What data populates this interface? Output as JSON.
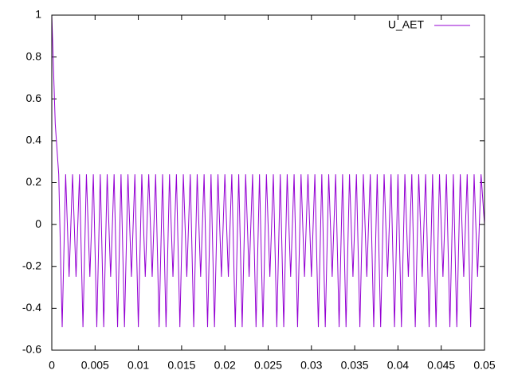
{
  "chart_data": {
    "type": "line",
    "x": [
      0,
      0.0004,
      0.0008,
      0.0012,
      0.0016,
      0.002,
      0.0024,
      0.0028,
      0.0032,
      0.0036,
      0.004,
      0.0044,
      0.0048,
      0.0052,
      0.0056,
      0.006,
      0.0064,
      0.0068,
      0.0072,
      0.0076,
      0.008,
      0.0084,
      0.0088,
      0.0092,
      0.0096,
      0.01,
      0.0104,
      0.0108,
      0.0112,
      0.0116,
      0.012,
      0.0124,
      0.0128,
      0.0132,
      0.0136,
      0.014,
      0.0144,
      0.0148,
      0.0152,
      0.0156,
      0.016,
      0.0164,
      0.0168,
      0.0172,
      0.0176,
      0.018,
      0.0184,
      0.0188,
      0.0192,
      0.0196,
      0.02,
      0.0204,
      0.0208,
      0.0212,
      0.0216,
      0.022,
      0.0224,
      0.0228,
      0.0232,
      0.0236,
      0.024,
      0.0244,
      0.0248,
      0.0252,
      0.0256,
      0.026,
      0.0264,
      0.0268,
      0.0272,
      0.0276,
      0.028,
      0.0284,
      0.0288,
      0.0292,
      0.0296,
      0.03,
      0.0304,
      0.0308,
      0.0312,
      0.0316,
      0.032,
      0.0324,
      0.0328,
      0.0332,
      0.0336,
      0.034,
      0.0344,
      0.0348,
      0.0352,
      0.0356,
      0.036,
      0.0364,
      0.0368,
      0.0372,
      0.0376,
      0.038,
      0.0384,
      0.0388,
      0.0392,
      0.0396,
      0.04,
      0.0404,
      0.0408,
      0.0412,
      0.0416,
      0.042,
      0.0424,
      0.0428,
      0.0432,
      0.0436,
      0.044,
      0.0444,
      0.0448,
      0.0452,
      0.0456,
      0.046,
      0.0464,
      0.0468,
      0.0472,
      0.0476,
      0.048,
      0.0484,
      0.0488,
      0.0492,
      0.0496,
      0.05
    ],
    "series": [
      {
        "name": "U_AET",
        "color": "#9400d3",
        "values": [
          1,
          0.48,
          0.24,
          -0.49,
          0.24,
          -0.25,
          0.24,
          -0.25,
          0.24,
          -0.49,
          0.24,
          -0.25,
          0.24,
          -0.49,
          0.24,
          -0.49,
          0.24,
          -0.25,
          0.24,
          -0.49,
          0.24,
          -0.49,
          0.24,
          -0.25,
          0.24,
          -0.49,
          0.24,
          -0.25,
          0.24,
          -0.25,
          0.24,
          -0.49,
          0.24,
          -0.49,
          0.24,
          -0.25,
          0.24,
          -0.49,
          0.24,
          -0.25,
          0.24,
          -0.49,
          0.24,
          -0.25,
          0.24,
          -0.49,
          0.24,
          -0.49,
          0.24,
          -0.25,
          0.24,
          -0.25,
          0.24,
          -0.49,
          0.24,
          -0.49,
          0.24,
          -0.25,
          0.24,
          -0.49,
          0.24,
          -0.49,
          0.24,
          -0.25,
          0.24,
          -0.49,
          0.24,
          -0.49,
          0.24,
          -0.25,
          0.24,
          -0.49,
          0.24,
          -0.25,
          0.24,
          -0.25,
          0.24,
          -0.49,
          0.24,
          -0.49,
          0.24,
          -0.25,
          0.24,
          -0.49,
          0.24,
          -0.49,
          0.24,
          -0.25,
          0.24,
          -0.49,
          0.24,
          -0.25,
          0.24,
          -0.49,
          0.24,
          -0.49,
          0.24,
          -0.25,
          0.24,
          -0.49,
          0.24,
          -0.49,
          0.24,
          -0.25,
          0.24,
          -0.49,
          0.24,
          -0.25,
          0.24,
          -0.49,
          0.24,
          -0.49,
          0.24,
          -0.25,
          0.24,
          -0.49,
          0.24,
          -0.49,
          0.24,
          -0.25,
          0.24,
          -0.49,
          0.24,
          -0.25,
          0.24,
          0
        ]
      }
    ],
    "xlim": [
      0,
      0.05
    ],
    "xticks": [
      0,
      0.005,
      0.01,
      0.015,
      0.02,
      0.025,
      0.03,
      0.035,
      0.04,
      0.045,
      0.05
    ],
    "ylim": [
      -0.6,
      1
    ],
    "yticks": [
      -0.6,
      -0.4,
      -0.2,
      0,
      0.2,
      0.4,
      0.6,
      0.8,
      1
    ],
    "grid": false,
    "legend": "top-right"
  }
}
